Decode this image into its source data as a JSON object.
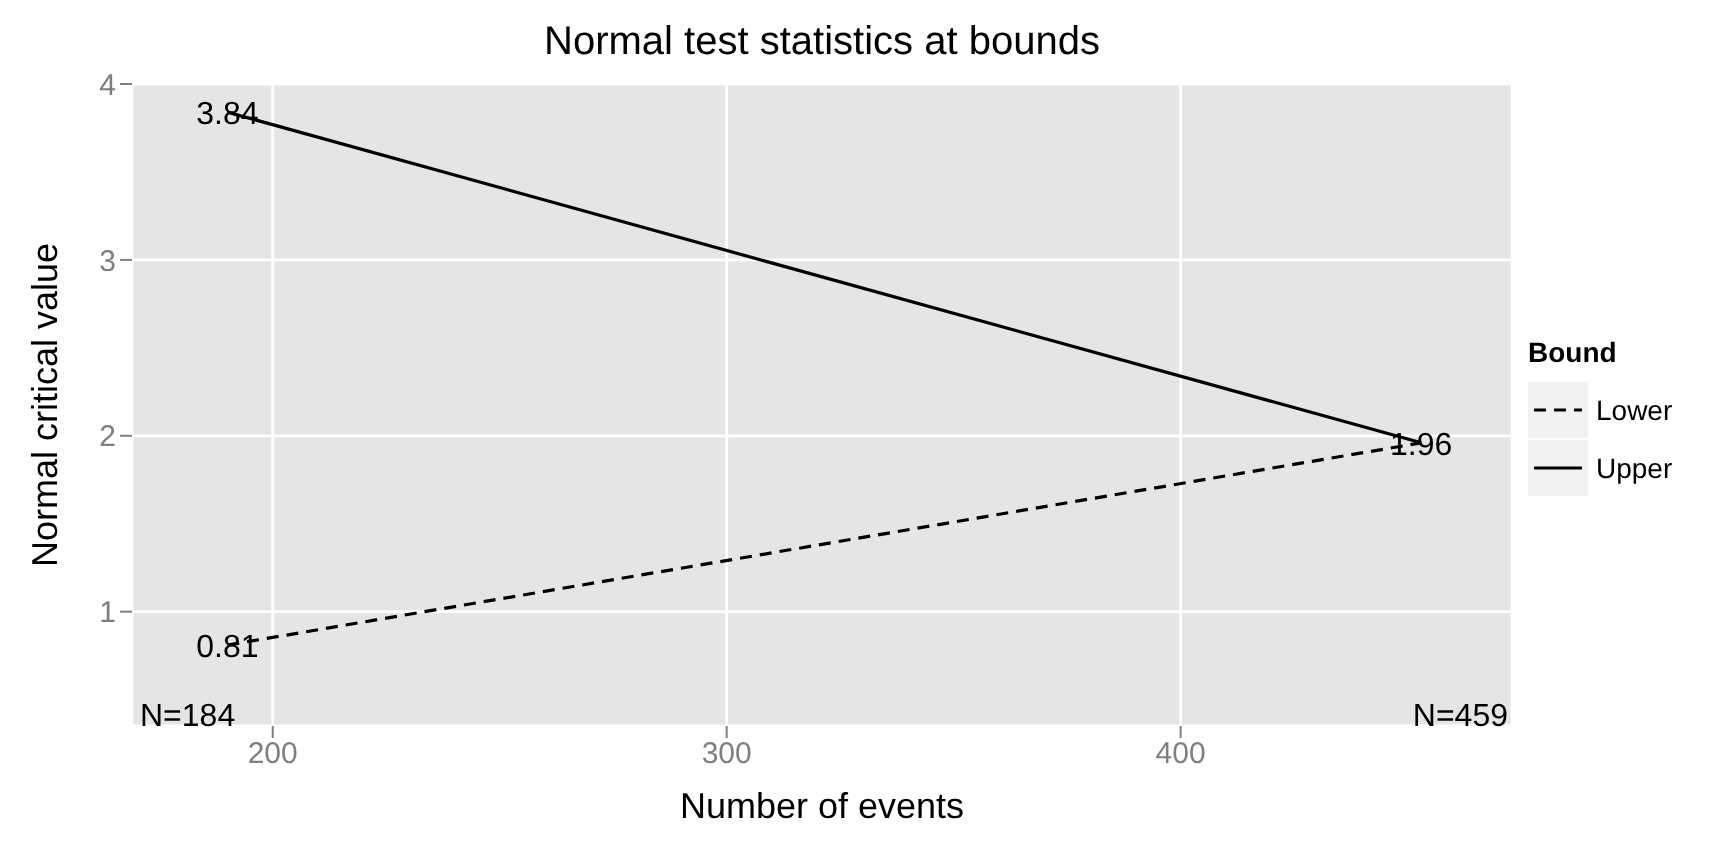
{
  "chart_data": {
    "type": "line",
    "title": "Normal test statistics at bounds",
    "xlabel": "Number of events",
    "ylabel": "Normal critical value",
    "legend_title": "Bound",
    "x": [
      190,
      453
    ],
    "series": [
      {
        "name": "Lower",
        "color": "#000000",
        "line_style": "dashed",
        "values": [
          0.81,
          1.96
        ],
        "value_labels": [
          "0.81",
          "1.96"
        ]
      },
      {
        "name": "Upper",
        "color": "#000000",
        "line_style": "solid",
        "values": [
          3.84,
          1.96
        ],
        "value_labels": [
          "3.84",
          null
        ]
      }
    ],
    "xlim": [
      169,
      473
    ],
    "xticks": [
      200,
      300,
      400
    ],
    "ylim": [
      0.35,
      4.0
    ],
    "yticks": [
      1,
      2,
      3,
      4
    ],
    "grid": true,
    "legend": "right",
    "marker": "none",
    "annotations": [
      "N=184",
      "N=459"
    ]
  }
}
